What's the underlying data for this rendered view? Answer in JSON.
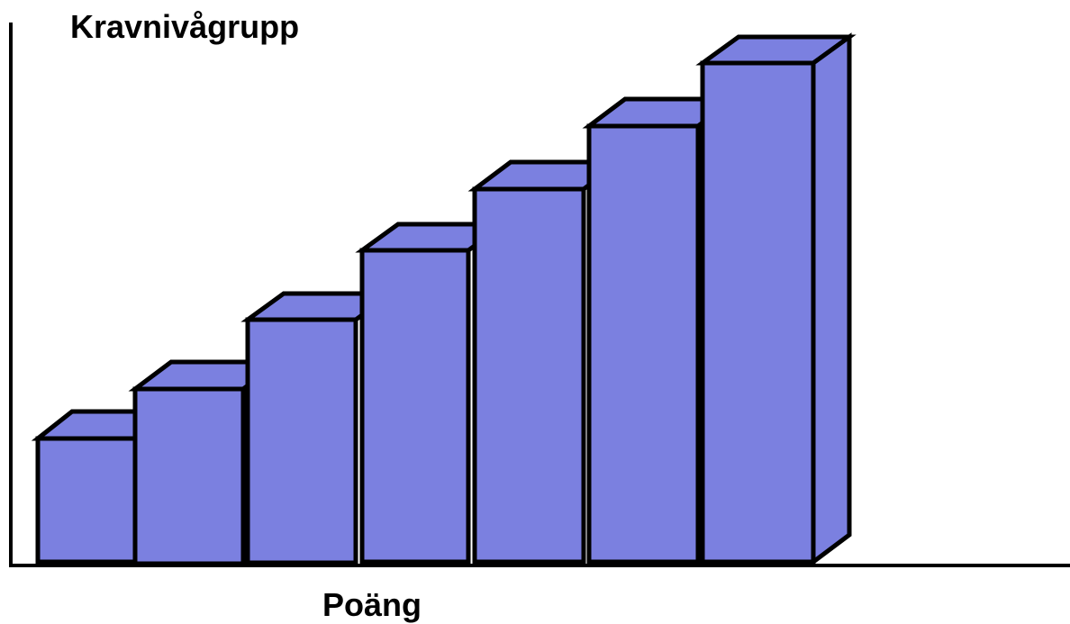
{
  "y_axis_label": "Kravnivågrupp",
  "x_axis_label": "Poäng"
}
